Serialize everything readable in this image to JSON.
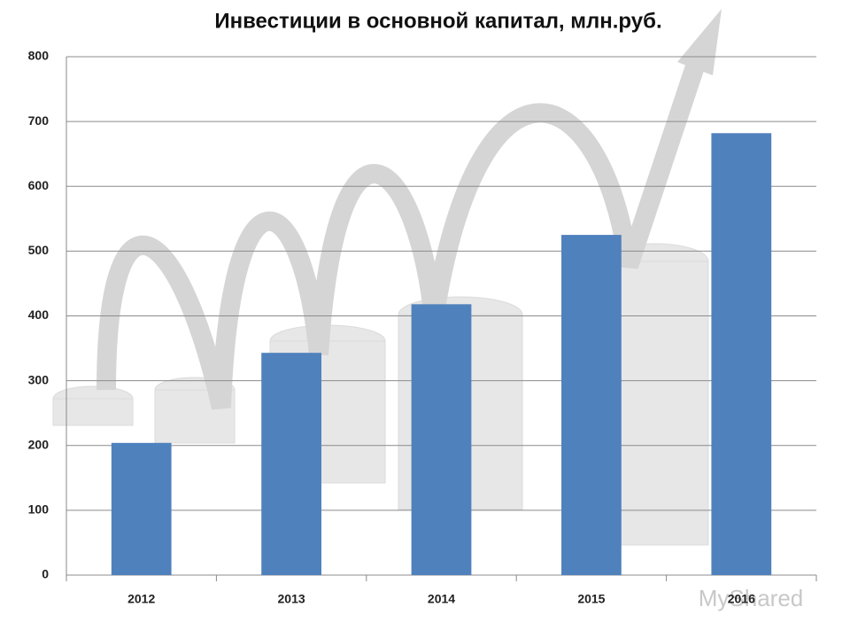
{
  "chart_data": {
    "type": "bar",
    "title": "Инвестиции в основной капитал, млн.руб.",
    "categories": [
      "2012",
      "2013",
      "2014",
      "2015",
      "2016"
    ],
    "values": [
      204,
      343,
      418,
      525,
      682
    ],
    "color": "#4f81bd",
    "ylim": [
      0,
      800
    ],
    "yticks": [
      0,
      100,
      200,
      300,
      400,
      500,
      600,
      700,
      800
    ],
    "grid": true
  },
  "watermark": "MyShared"
}
